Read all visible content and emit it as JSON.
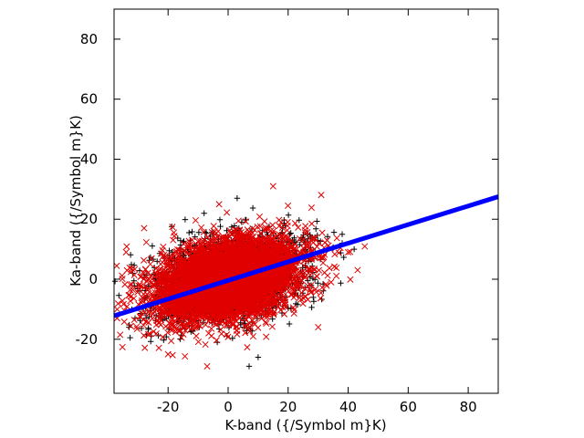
{
  "chart_data": {
    "type": "scatter",
    "title": "",
    "xlabel": "K-band ({/Symbol m}K)",
    "ylabel": "Ka-band ({/Symbol m}K)",
    "xlim": [
      -38,
      90
    ],
    "ylim": [
      -38,
      90
    ],
    "xticks": [
      -20,
      0,
      20,
      40,
      60,
      80
    ],
    "yticks": [
      -20,
      0,
      20,
      40,
      60,
      80
    ],
    "xtick_labels": [
      "-20",
      "0",
      "20",
      "40",
      "60",
      "80"
    ],
    "ytick_labels": [
      "-20",
      "0",
      "20",
      "40",
      "60",
      "80"
    ],
    "grid": false,
    "legend": "none",
    "series": [
      {
        "marker": "plus",
        "color": "#000000",
        "center": [
          0,
          0
        ],
        "spread": [
          12,
          7
        ],
        "correlation": 0.35,
        "count": 2500,
        "notable_points": [
          [
            3,
            27
          ],
          [
            -8,
            22
          ],
          [
            7,
            -29
          ],
          [
            10,
            -26
          ],
          [
            42,
            10
          ],
          [
            38,
            15
          ],
          [
            -33,
            -16
          ],
          [
            -31,
            -13
          ],
          [
            38,
            12
          ]
        ]
      },
      {
        "marker": "x",
        "color": "#e00000",
        "center": [
          0,
          0
        ],
        "spread": [
          12,
          7
        ],
        "correlation": 0.35,
        "count": 5000,
        "notable_points": [
          [
            15,
            31
          ],
          [
            -7,
            -29
          ],
          [
            -3,
            25
          ],
          [
            -37,
            -13
          ],
          [
            -34,
            9
          ],
          [
            -28,
            17
          ],
          [
            -20,
            -25
          ],
          [
            30,
            -16
          ],
          [
            40,
            9
          ],
          [
            33,
            13
          ]
        ]
      },
      {
        "type": "line",
        "color": "#0000ff",
        "slope": 0.31,
        "intercept": -0.4,
        "x_range": [
          -38,
          90
        ]
      }
    ]
  }
}
